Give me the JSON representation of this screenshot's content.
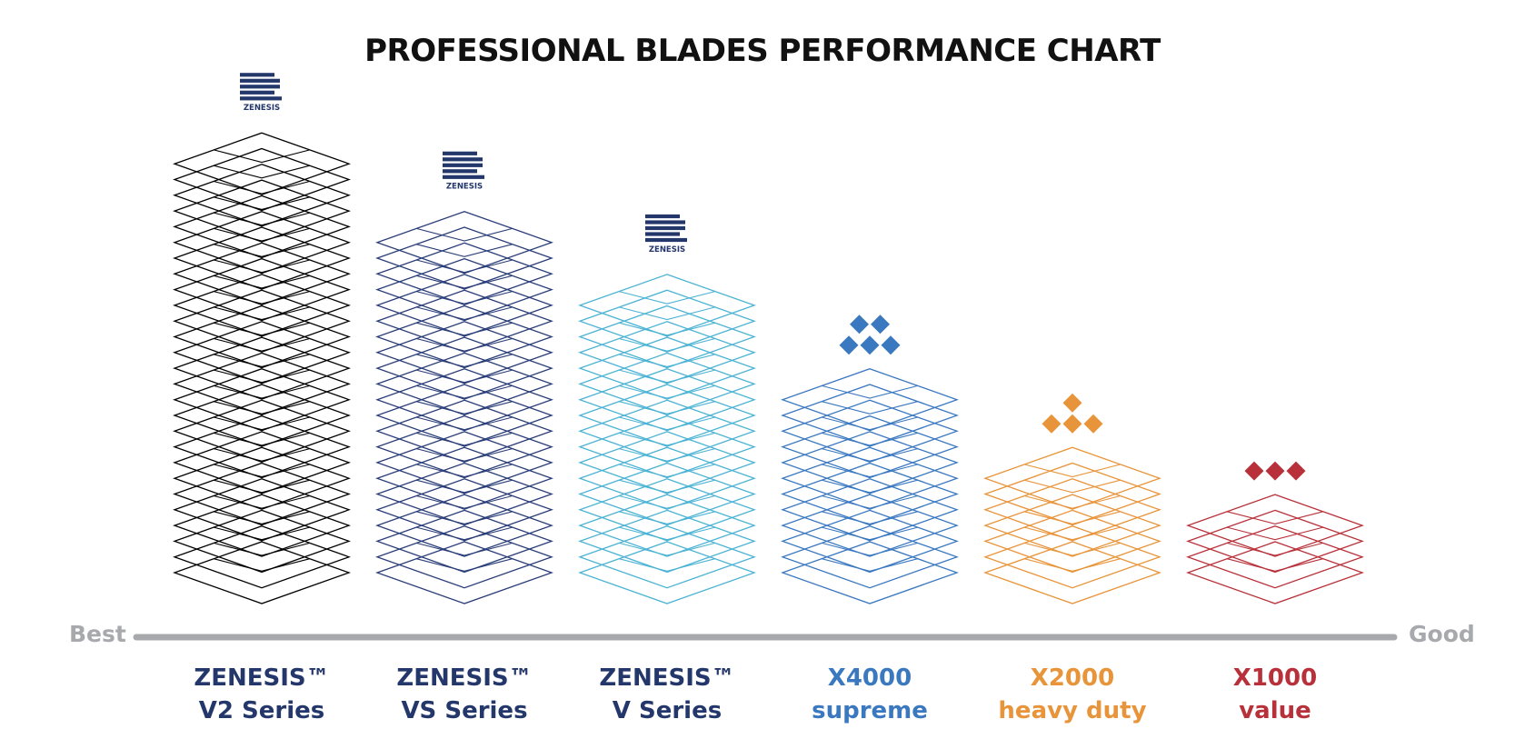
{
  "chart_data": {
    "type": "bar",
    "title": "PROFESSIONAL BLADES PERFORMANCE CHART",
    "axis": {
      "left_label": "Best",
      "right_label": "Good",
      "line_color": "#a8a9ad"
    },
    "categories": [
      {
        "line1": "ZENESIS™",
        "line2": "V2 Series",
        "color": "#000000",
        "label_color": "#24376b",
        "layers": 27,
        "badge": "zenesis-logo"
      },
      {
        "line1": "ZENESIS™",
        "line2": "VS Series",
        "color": "#2a3d78",
        "label_color": "#24376b",
        "layers": 22,
        "badge": "zenesis-logo"
      },
      {
        "line1": "ZENESIS™",
        "line2": "V Series",
        "color": "#4cb3d4",
        "label_color": "#24376b",
        "layers": 18,
        "badge": "zenesis-logo"
      },
      {
        "line1": "X4000",
        "line2": "supreme",
        "color": "#3a78c0",
        "label_color": "#3a78c0",
        "layers": 12,
        "badge": "diamonds-5"
      },
      {
        "line1": "X2000",
        "line2": "heavy duty",
        "color": "#e8943a",
        "label_color": "#e8943a",
        "layers": 7,
        "badge": "diamonds-4"
      },
      {
        "line1": "X1000",
        "line2": "value",
        "color": "#b8313a",
        "label_color": "#b8313a",
        "layers": 4,
        "badge": "diamonds-3"
      }
    ],
    "logo": {
      "text": "ZENESIS",
      "color": "#24376b"
    }
  }
}
